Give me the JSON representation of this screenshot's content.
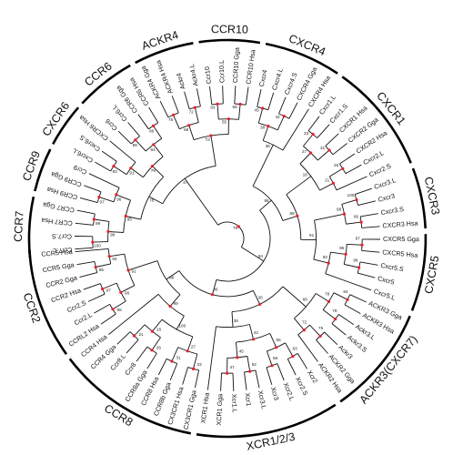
{
  "tree": {
    "leaves": [
      "Ccr7.L",
      "Ccr7.S",
      "CCR7 Hsa",
      "CCR7 Gga",
      "CCR9 Hsa",
      "CCR9 Gga",
      "Ccr9",
      "Cxcr6.L",
      "Cxcr6.S",
      "CXCR6 Hsa",
      "Ccr6",
      "Ccr6.L",
      "CCR6 Gga",
      "CCR6 Hsa",
      "ACKR4 Gga",
      "ACKR4 Hsa",
      "Ackr4",
      "Ackr4.L",
      "Ccr10",
      "Ccr10.L",
      "CCR10 Gga",
      "CCR10 Hsa",
      "Cxcr4",
      "Cxcr4.L",
      "Cxcr4.S",
      "CXCR4 Gga",
      "CXCR4 Hsa",
      "Cxcr1.L",
      "Cxcr1.S",
      "CXCR1 Hsa",
      "CXCR2 Gga",
      "CXCR2 Hsa",
      "Cxcr2.L",
      "Cxcr2.S",
      "Cxcr3.L",
      "Cxcr3",
      "Cxcr3.S",
      "CXCR3 Hsa",
      "CXCR5 Gga",
      "CXCR5 Hsa",
      "Cxcr5.S",
      "Cxcr5",
      "Cxcr5.L",
      "ACKR3 Gga",
      "ACKR3 Hsa",
      "Ackr3.L",
      "Ackr3.S",
      "Ackr3",
      "ACKR2 Gga",
      "ACKR2 Hsa",
      "Xcr2",
      "Xcr2.S",
      "Xcr2.L",
      "Xcr3",
      "Xcr3.L",
      "Xcr1",
      "Xcr1.L",
      "XCR1 Gga",
      "XCR1 Hsa",
      "CX3CR1 Gga",
      "CX3CR1 Hsa",
      "CCR8b Gga",
      "CCR8 Hsa",
      "CCR8a Gga",
      "Ccr8",
      "Ccr8.L",
      "CCR4 Gga",
      "CCR4 Hsa",
      "CCRL2 Hsa",
      "Ccr2.L",
      "Ccr2.S",
      "CCR2 Hsa",
      "CCR2 Gga",
      "CCR5 Gga",
      "CCR5 Hsa"
    ],
    "clades": [
      "CCR7",
      "CCR9",
      "CXCR6",
      "CCR6",
      "ACKR4",
      "CCR10",
      "CXCR4",
      "CXCR1",
      "CXCR3",
      "CXCR5",
      "ACKR3(CXCR7)",
      "XCR1/2/3",
      "CCR8",
      "CCR2"
    ],
    "bootstrap": [
      "100",
      "99",
      "98",
      "97",
      "96",
      "95",
      "93",
      "91",
      "88",
      "86",
      "84",
      "79",
      "78",
      "75",
      "72",
      "68",
      "63",
      "58",
      "55",
      "52",
      "47",
      "45",
      "42",
      "38",
      "36",
      "33",
      "31",
      "27",
      "26",
      "21",
      "18"
    ]
  }
}
